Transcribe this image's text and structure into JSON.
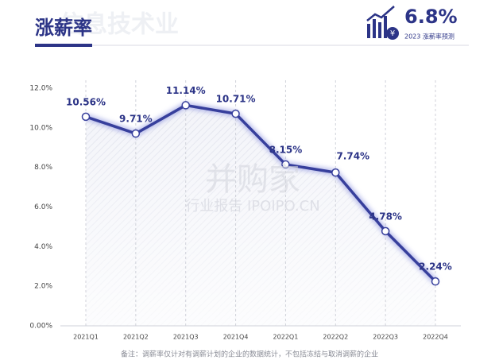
{
  "header": {
    "title": "涨薪率",
    "background_title": "信息技术业",
    "forecast_value": "6.8%",
    "forecast_label": "2023 涨薪率预测"
  },
  "watermark": {
    "brand": "并购家",
    "sub": "行业报告 IPOIPO.CN"
  },
  "chart_data": {
    "type": "line",
    "categories": [
      "2021Q1",
      "2021Q2",
      "2021Q3",
      "2021Q4",
      "2022Q1",
      "2022Q2",
      "2022Q3",
      "2022Q4"
    ],
    "values": [
      10.56,
      9.71,
      11.14,
      10.71,
      8.15,
      7.74,
      4.78,
      2.24
    ],
    "value_labels": [
      "10.56%",
      "9.71%",
      "11.14%",
      "10.71%",
      "8.15%",
      "7.74%",
      "4.78%",
      "2.24%"
    ],
    "color": "#373f9c",
    "ylim": [
      0,
      12
    ],
    "yticks": [
      {
        "value": 0,
        "label": "0.00%"
      },
      {
        "value": 2,
        "label": "2.0%"
      },
      {
        "value": 4,
        "label": "4.0%"
      },
      {
        "value": 6,
        "label": "6.0%"
      },
      {
        "value": 8,
        "label": "8.0%"
      },
      {
        "value": 10,
        "label": "10.0%"
      },
      {
        "value": 12,
        "label": "12.0%"
      }
    ],
    "grid": false
  },
  "footnote": "备注：调薪率仅计对有调薪计划的企业的数据统计，不包括冻结与取消调薪的企业"
}
